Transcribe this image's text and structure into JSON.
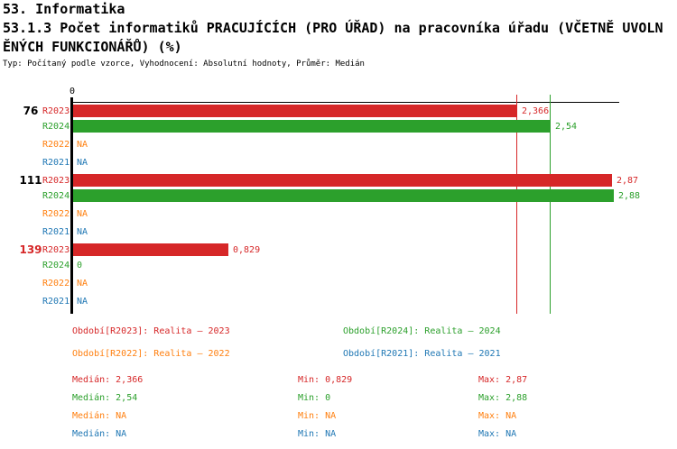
{
  "header": {
    "title": "53. Informatika",
    "subtitle_line1": "53.1.3 Počet informatiků PRACUJÍCÍCH (PRO ÚŘAD) na pracovníka úřadu (VČETNĚ UVOLN",
    "subtitle_line2": "ĚNÝCH FUNKCIONÁŘŮ) (%)",
    "meta": "Typ: Počítaný podle vzorce, Vyhodnocení: Absolutní hodnoty, Průměr: Medián"
  },
  "colors": {
    "r2023": "#d62728",
    "r2024": "#2ca02c",
    "r2022": "#ff7f0e",
    "r2021": "#1f77b4",
    "axis": "#000000"
  },
  "chart_data": {
    "type": "bar",
    "orientation": "horizontal",
    "title": "53.1.3 Počet informatiků PRACUJÍCÍCH (PRO ÚŘAD) na pracovníka úřadu (VČETNĚ UVOLNĚNÝCH FUNKCIONÁŘŮ) (%)",
    "axis_zero_label": "0",
    "xlim": [
      0,
      2.91
    ],
    "grid": false,
    "series_order": [
      "R2023",
      "R2024",
      "R2022",
      "R2021"
    ],
    "groups": [
      {
        "id": "76",
        "id_color": "#000000",
        "rows": [
          {
            "series": "R2023",
            "color": "#d62728",
            "value": 2.366,
            "label": "2,366"
          },
          {
            "series": "R2024",
            "color": "#2ca02c",
            "value": 2.54,
            "label": "2,54"
          },
          {
            "series": "R2022",
            "color": "#ff7f0e",
            "value": null,
            "label": "NA"
          },
          {
            "series": "R2021",
            "color": "#1f77b4",
            "value": null,
            "label": "NA"
          }
        ]
      },
      {
        "id": "111",
        "id_color": "#000000",
        "rows": [
          {
            "series": "R2023",
            "color": "#d62728",
            "value": 2.87,
            "label": "2,87"
          },
          {
            "series": "R2024",
            "color": "#2ca02c",
            "value": 2.88,
            "label": "2,88"
          },
          {
            "series": "R2022",
            "color": "#ff7f0e",
            "value": null,
            "label": "NA"
          },
          {
            "series": "R2021",
            "color": "#1f77b4",
            "value": null,
            "label": "NA"
          }
        ]
      },
      {
        "id": "139",
        "id_color": "#d62728",
        "rows": [
          {
            "series": "R2023",
            "color": "#d62728",
            "value": 0.829,
            "label": "0,829"
          },
          {
            "series": "R2024",
            "color": "#2ca02c",
            "value": 0,
            "label": "0"
          },
          {
            "series": "R2022",
            "color": "#ff7f0e",
            "value": null,
            "label": "NA"
          },
          {
            "series": "R2021",
            "color": "#1f77b4",
            "value": null,
            "label": "NA"
          }
        ]
      }
    ],
    "median_lines": [
      {
        "series": "R2023",
        "value": 2.366,
        "color": "#d62728"
      },
      {
        "series": "R2024",
        "value": 2.54,
        "color": "#2ca02c"
      }
    ]
  },
  "legend": {
    "items": [
      {
        "series": "R2023",
        "label": "Období[R2023]: Realita – 2023",
        "color": "#d62728"
      },
      {
        "series": "R2024",
        "label": "Období[R2024]: Realita – 2024",
        "color": "#2ca02c"
      },
      {
        "series": "R2022",
        "label": "Období[R2022]: Realita – 2022",
        "color": "#ff7f0e"
      },
      {
        "series": "R2021",
        "label": "Období[R2021]: Realita – 2021",
        "color": "#1f77b4"
      }
    ]
  },
  "stats": {
    "rows": [
      {
        "series": "R2023",
        "median": "Medián: 2,366",
        "min": "Min: 0,829",
        "max": "Max: 2,87",
        "color": "#d62728"
      },
      {
        "series": "R2024",
        "median": "Medián: 2,54",
        "min": "Min: 0",
        "max": "Max: 2,88",
        "color": "#2ca02c"
      },
      {
        "series": "R2022",
        "median": "Medián: NA",
        "min": "Min: NA",
        "max": "Max: NA",
        "color": "#ff7f0e"
      },
      {
        "series": "R2021",
        "median": "Medián: NA",
        "min": "Min: NA",
        "max": "Max: NA",
        "color": "#1f77b4"
      }
    ]
  }
}
